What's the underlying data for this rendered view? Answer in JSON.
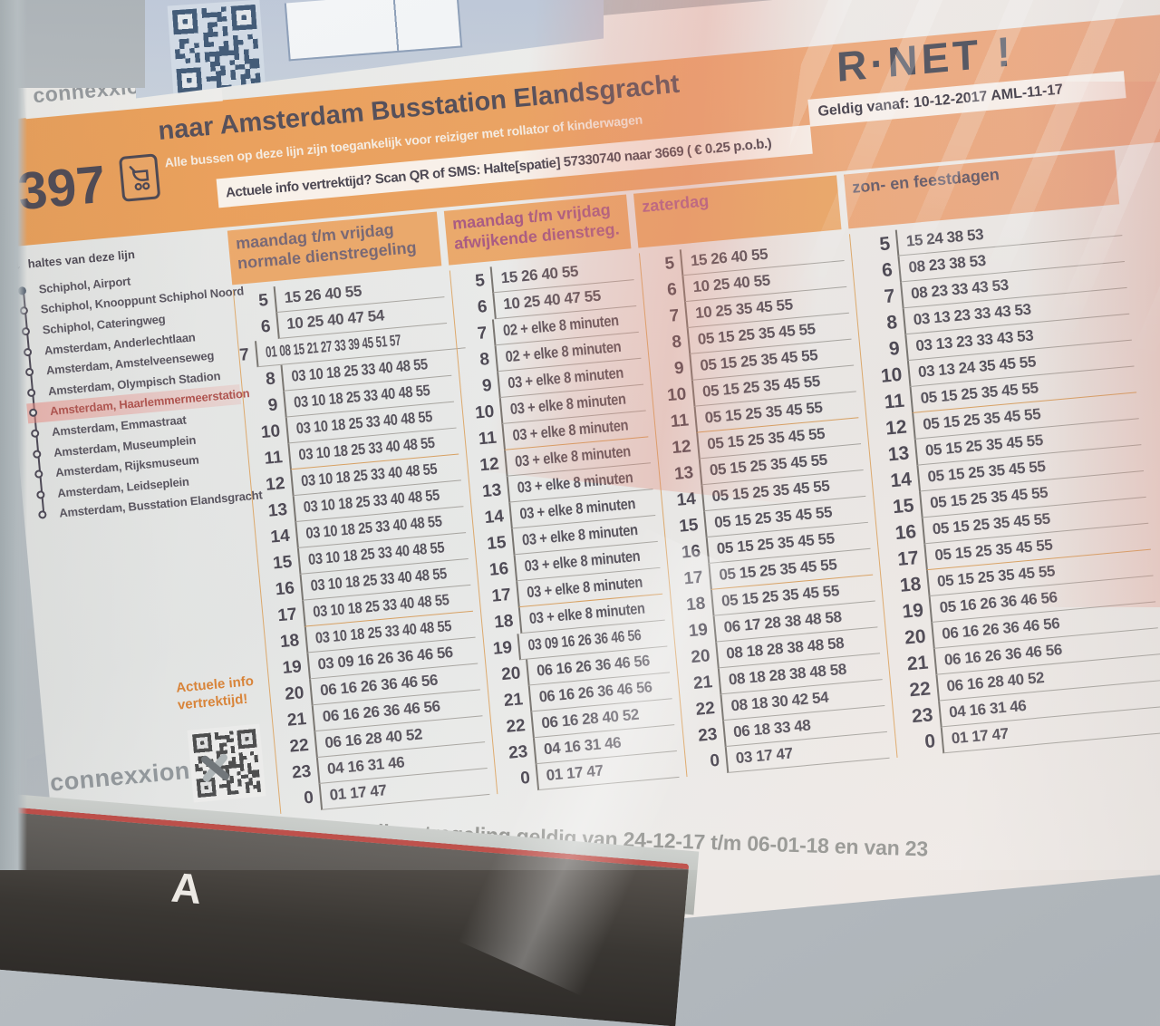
{
  "poster": {
    "brand": "connexxion",
    "route_number": "397",
    "destination": "naar Amsterdam Busstation Elandsgracht",
    "accessibility_note": "Alle bussen op deze lijn zijn toegankelijk voor reiziger met rollator of kinderwagen",
    "sms_info": "Actuele info vertrektijd? Scan QR of SMS: Halte[spatie] 57330740 naar 3669 ( € 0.25 p.o.b.)",
    "valid_from": "Geldig vanaf: 10-12-2017 AML-11-17",
    "network_logo": "R·NET !",
    "stops_panel": {
      "title": "haltes van deze lijn",
      "stops": [
        {
          "name": "Schiphol, Airport",
          "terminus": true,
          "highlight": false
        },
        {
          "name": "Schiphol, Knooppunt Schiphol Noord",
          "terminus": false,
          "highlight": false
        },
        {
          "name": "Schiphol, Cateringweg",
          "terminus": false,
          "highlight": false
        },
        {
          "name": "Amsterdam, Anderlechtlaan",
          "terminus": false,
          "highlight": false
        },
        {
          "name": "Amsterdam, Amstelveenseweg",
          "terminus": false,
          "highlight": false
        },
        {
          "name": "Amsterdam, Olympisch Stadion",
          "terminus": false,
          "highlight": false
        },
        {
          "name": "Amsterdam, Haarlemmermeerstation",
          "terminus": false,
          "highlight": true
        },
        {
          "name": "Amsterdam, Emmastraat",
          "terminus": false,
          "highlight": false
        },
        {
          "name": "Amsterdam, Museumplein",
          "terminus": false,
          "highlight": false
        },
        {
          "name": "Amsterdam, Rijksmuseum",
          "terminus": false,
          "highlight": false
        },
        {
          "name": "Amsterdam, Leidseplein",
          "terminus": false,
          "highlight": false
        },
        {
          "name": "Amsterdam, Busstation Elandsgracht",
          "terminus": false,
          "highlight": false
        }
      ]
    },
    "qr_caption": "Actuele info vertrektijd!",
    "footer_note": "Afwijkende dienstregeling geldig van 24-12-17 t/m 06-01-18 en van 23",
    "timetable": {
      "hours": [
        "5",
        "6",
        "7",
        "8",
        "9",
        "10",
        "11",
        "12",
        "13",
        "14",
        "15",
        "16",
        "17",
        "18",
        "19",
        "20",
        "21",
        "22",
        "23",
        "0"
      ],
      "orange_separator_after_hours": [
        "11",
        "17"
      ],
      "columns": [
        {
          "header_lines": [
            "maandag t/m vrijdag",
            "normale dienstregeling"
          ],
          "header_color": "#6e5a68",
          "minutes": [
            "15 26 40 55",
            "10 25 40 47 54",
            "01 08 15 21 27 33 39 45 51 57",
            "03 10 18 25 33 40 48 55",
            "03 10 18 25 33 40 48 55",
            "03 10 18 25 33 40 48 55",
            "03 10 18 25 33 40 48 55",
            "03 10 18 25 33 40 48 55",
            "03 10 18 25 33 40 48 55",
            "03 10 18 25 33 40 48 55",
            "03 10 18 25 33 40 48 55",
            "03 10 18 25 33 40 48 55",
            "03 10 18 25 33 40 48 55",
            "03 10 18 25 33 40 48 55",
            "03 09 16 26 36 46 56",
            "06 16 26 36 46 56",
            "06 16 26 36 46 56",
            "06 16 28 40 52",
            "04 16 31 46",
            "01 17 47"
          ]
        },
        {
          "header_lines": [
            "maandag t/m vrijdag",
            "afwijkende dienstreg."
          ],
          "header_color": "#a84a78",
          "minutes": [
            "15 26 40 55",
            "10 25 40 47 55",
            "02 + elke 8 minuten",
            "02 + elke 8 minuten",
            "03 + elke 8 minuten",
            "03 + elke 8 minuten",
            "03 + elke 8 minuten",
            "03 + elke 8 minuten",
            "03 + elke 8 minuten",
            "03 + elke 8 minuten",
            "03 + elke 8 minuten",
            "03 + elke 8 minuten",
            "03 + elke 8 minuten",
            "03 + elke 8 minuten",
            "03 09 16 26 36 46 56",
            "06 16 26 36 46 56",
            "06 16 26 36 46 56",
            "06 16 28 40 52",
            "04 16 31 46",
            "01 17 47"
          ]
        },
        {
          "header_lines": [
            "zaterdag"
          ],
          "header_color": "#b05080",
          "minutes": [
            "15 26 40 55",
            "10 25 40 55",
            "10 25 35 45 55",
            "05 15 25 35 45 55",
            "05 15 25 35 45 55",
            "05 15 25 35 45 55",
            "05 15 25 35 45 55",
            "05 15 25 35 45 55",
            "05 15 25 35 45 55",
            "05 15 25 35 45 55",
            "05 15 25 35 45 55",
            "05 15 25 35 45 55",
            "05 15 25 35 45 55",
            "05 15 25 35 45 55",
            "06 17 28 38 48 58",
            "08 18 28 38 48 58",
            "08 18 28 38 48 58",
            "08 18 30 42 54",
            "06 18 33 48",
            "03 17 47"
          ]
        },
        {
          "header_lines": [
            "zon- en feestdagen"
          ],
          "header_color": "#5f5260",
          "minutes": [
            "15 24 38 53",
            "08 23 38 53",
            "08 23 33 43 53",
            "03 13 23 33 43 53",
            "03 13 23 33 43 53",
            "03 13 24 35 45 55",
            "05 15 25 35 45 55",
            "05 15 25 35 45 55",
            "05 15 25 35 45 55",
            "05 15 25 35 45 55",
            "05 15 25 35 45 55",
            "05 15 25 35 45 55",
            "05 15 25 35 45 55",
            "05 15 25 35 45 55",
            "05 16 26 36 46 56",
            "06 16 26 36 46 56",
            "06 16 26 36 46 56",
            "06 16 28 40 52",
            "04 16 31 46",
            "01 17 47"
          ]
        }
      ]
    }
  },
  "bottom_sign": {
    "letter": "A"
  },
  "colors": {
    "band_orange": "#ef9a4d",
    "header_box_orange": "#f1a159",
    "ink": "#3b3542",
    "paper": "#e9e9e7",
    "rnet_navy": "#2b3950",
    "stop_highlight_red": "#b0423c",
    "qr_caption_orange": "#e0791f",
    "note_gray": "#8e8e8a",
    "sign_red": "#bf3a32",
    "magenta": "#a84a78"
  }
}
